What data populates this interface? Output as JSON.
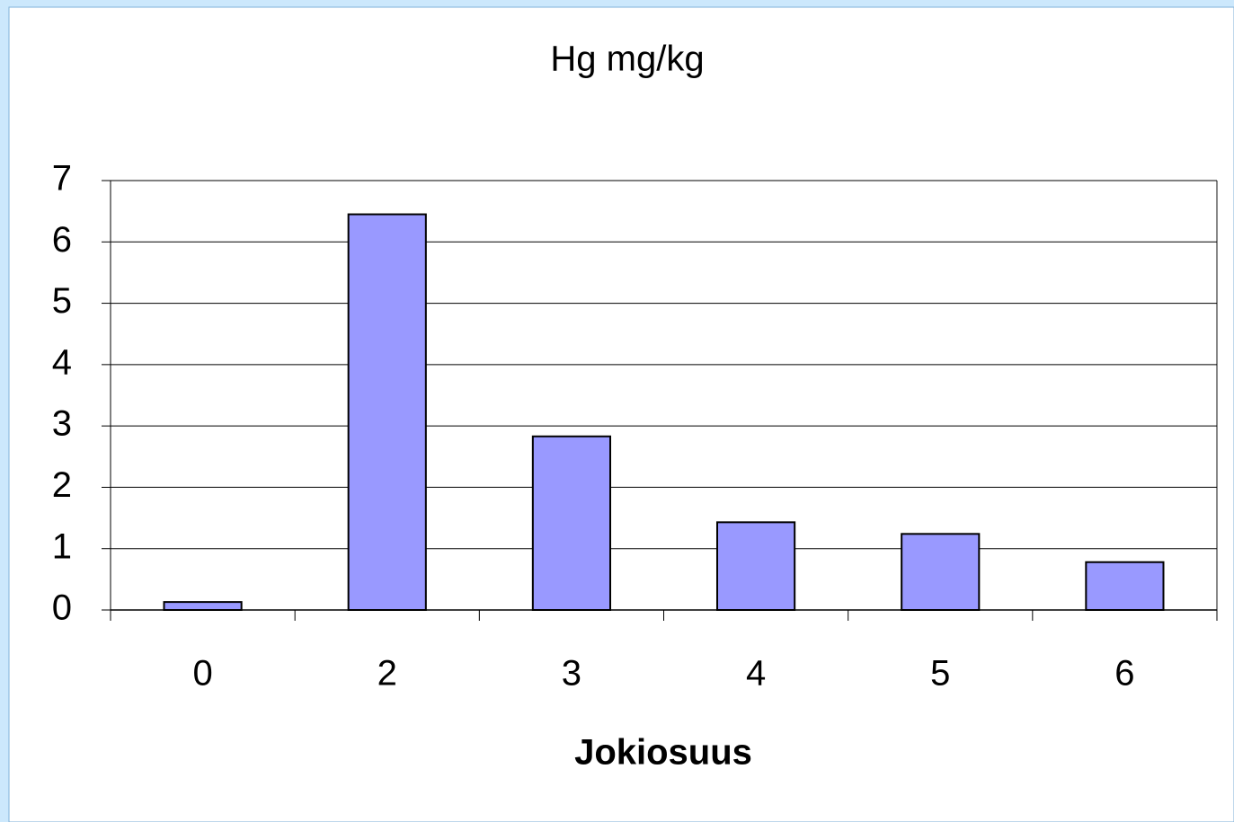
{
  "chart_data": {
    "type": "bar",
    "title": "Hg mg/kg",
    "x_label": "Jokiosuus",
    "categories": [
      "0",
      "2",
      "3",
      "4",
      "5",
      "6"
    ],
    "values": [
      0.13,
      6.45,
      2.83,
      1.43,
      1.24,
      0.78
    ],
    "color": "#9999ff",
    "ylim": [
      0,
      7
    ],
    "yticks": [
      0,
      1,
      2,
      3,
      4,
      5,
      6,
      7
    ],
    "grid": true
  }
}
